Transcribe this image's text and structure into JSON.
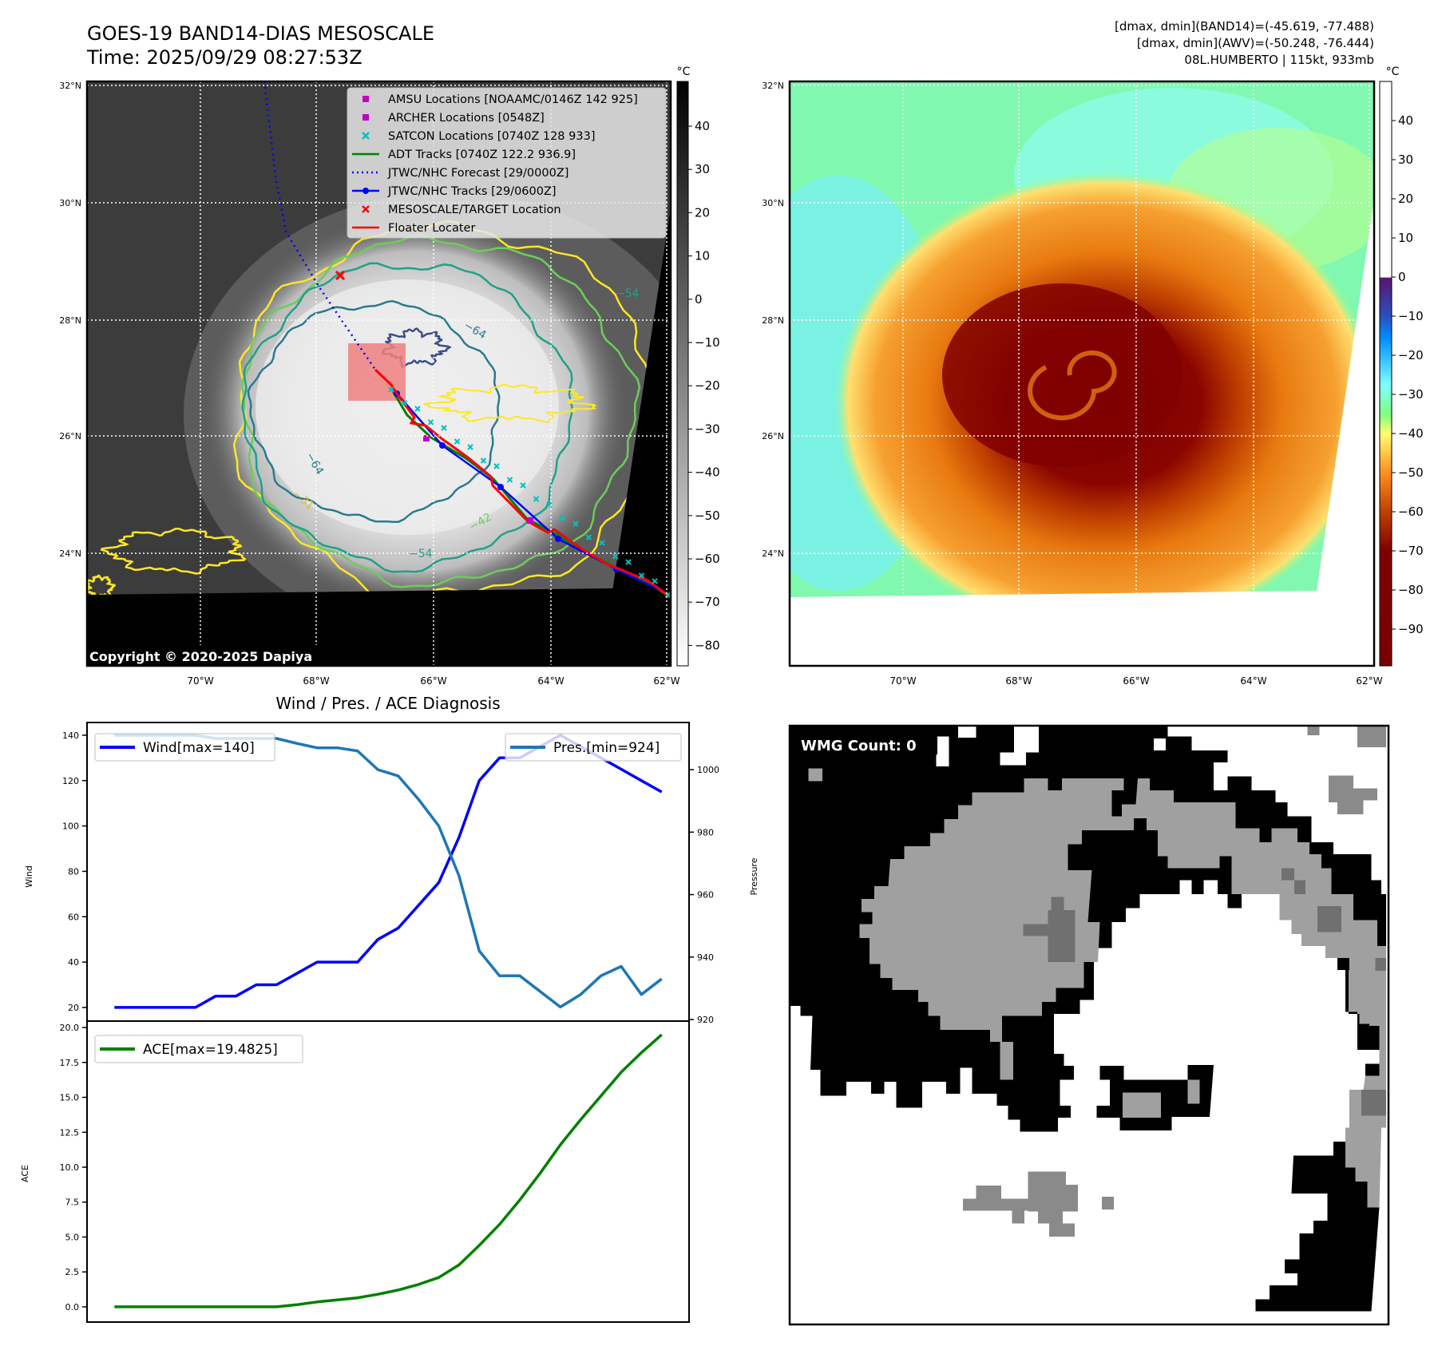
{
  "header": {
    "title": "GOES-19 BAND14-DIAS MESOSCALE",
    "time": "Time: 2025/09/29 08:27:53Z",
    "dmax_band14": "[dmax, dmin](BAND14)=(-45.619, -77.488)",
    "dmax_awv": "[dmax, dmin](AWV)=(-50.248, -76.444)",
    "storm": "08L.HUMBERTO | 115kt, 933mb"
  },
  "maps": {
    "lat_labels": [
      "32°N",
      "30°N",
      "28°N",
      "26°N",
      "24°N"
    ],
    "lon_labels": [
      "70°W",
      "68°W",
      "66°W",
      "64°W",
      "62°W"
    ],
    "unit": "°C",
    "copyright": "Copyright © 2020-2025 Dapiya",
    "left_colorbar_ticks": [
      "40",
      "30",
      "20",
      "10",
      "0",
      "−10",
      "−20",
      "−30",
      "−40",
      "−50",
      "−60",
      "−70",
      "−80"
    ],
    "right_colorbar_ticks": [
      "40",
      "30",
      "20",
      "10",
      "0",
      "−10",
      "−20",
      "−30",
      "−40",
      "−50",
      "−60",
      "−70",
      "−80",
      "−90"
    ],
    "contour_labels": [
      "−64",
      "−64",
      "−54",
      "−54",
      "−42",
      "−31"
    ],
    "legend": [
      {
        "label": "AMSU Locations [NOAAMC/0146Z 142 925]",
        "color": "#c000c0",
        "marker": "square"
      },
      {
        "label": "ARCHER Locations [0548Z]",
        "color": "#c000c0",
        "marker": "square"
      },
      {
        "label": "SATCON Locations [0740Z 128 933]",
        "color": "#00c0c0",
        "marker": "x"
      },
      {
        "label": "ADT Tracks [0740Z 122.2 936.9]",
        "color": "#008000",
        "marker": "line"
      },
      {
        "label": "JTWC/NHC Forecast [29/0000Z]",
        "color": "#0000ff",
        "marker": "dotted"
      },
      {
        "label": "JTWC/NHC Tracks [29/0600Z]",
        "color": "#0000ff",
        "marker": "line-dot"
      },
      {
        "label": "MESOSCALE/TARGET Location",
        "color": "#ff0000",
        "marker": "x"
      },
      {
        "label": "Floater Locater",
        "color": "#ff0000",
        "marker": "line"
      }
    ]
  },
  "wmg": {
    "label": "WMG Count: 0"
  },
  "chart_data": {
    "type": "line",
    "title": "Wind / Pres. / ACE Diagnosis",
    "x": [
      0,
      1,
      2,
      3,
      4,
      5,
      6,
      7,
      8,
      9,
      10,
      11,
      12,
      13,
      14,
      15,
      16,
      17,
      18,
      19,
      20,
      21,
      22,
      23,
      24,
      25,
      26,
      27
    ],
    "xlim": [
      -1.35,
      28.35
    ],
    "panels": [
      {
        "ylabel": "Wind",
        "ylim": [
          14.0,
          145.6
        ],
        "yticks": [
          20,
          40,
          60,
          80,
          100,
          120,
          140
        ],
        "y2label": "Pressure",
        "y2lim": [
          919.5,
          1015.1
        ],
        "y2ticks": [
          920,
          940,
          960,
          980,
          1000
        ],
        "series": [
          {
            "name": "Wind[max=140]",
            "axis": "left",
            "color": "#0000ff",
            "legend": "top-left",
            "values": [
              20,
              20,
              20,
              20,
              20,
              25,
              25,
              30,
              30,
              35,
              40,
              40,
              40,
              50,
              55,
              65,
              75,
              95,
              120,
              130,
              130,
              135,
              140,
              135,
              130,
              125,
              120,
              115
            ]
          },
          {
            "name": "Pres.[min=924]",
            "axis": "right",
            "color": "#1f77b4",
            "legend": "top-right",
            "values": [
              1011,
              1011,
              1011,
              1011,
              1011,
              1010,
              1010,
              1010,
              1010,
              1008.4,
              1007,
              1007,
              1006,
              1000,
              998,
              990.5,
              982,
              966,
              942,
              934,
              934,
              929,
              924,
              928,
              934,
              937,
              928,
              933
            ]
          }
        ]
      },
      {
        "ylabel": "ACE",
        "ylim": [
          -1.09,
          20.46
        ],
        "yticks": [
          "0.0",
          "2.5",
          "5.0",
          "7.5",
          "10.0",
          "12.5",
          "15.0",
          "17.5",
          "20.0"
        ],
        "series": [
          {
            "name": "ACE[max=19.4825]",
            "axis": "left",
            "color": "#008000",
            "legend": "top-left",
            "values": [
              0,
              0,
              0,
              0,
              0,
              0,
              0,
              0,
              0,
              0.15,
              0.35,
              0.5,
              0.65,
              0.9,
              1.2,
              1.6,
              2.1,
              3.0,
              4.4,
              5.9,
              7.65,
              9.56,
              11.6,
              13.4,
              15.1,
              16.8,
              18.2,
              19.4825
            ]
          }
        ]
      }
    ]
  }
}
